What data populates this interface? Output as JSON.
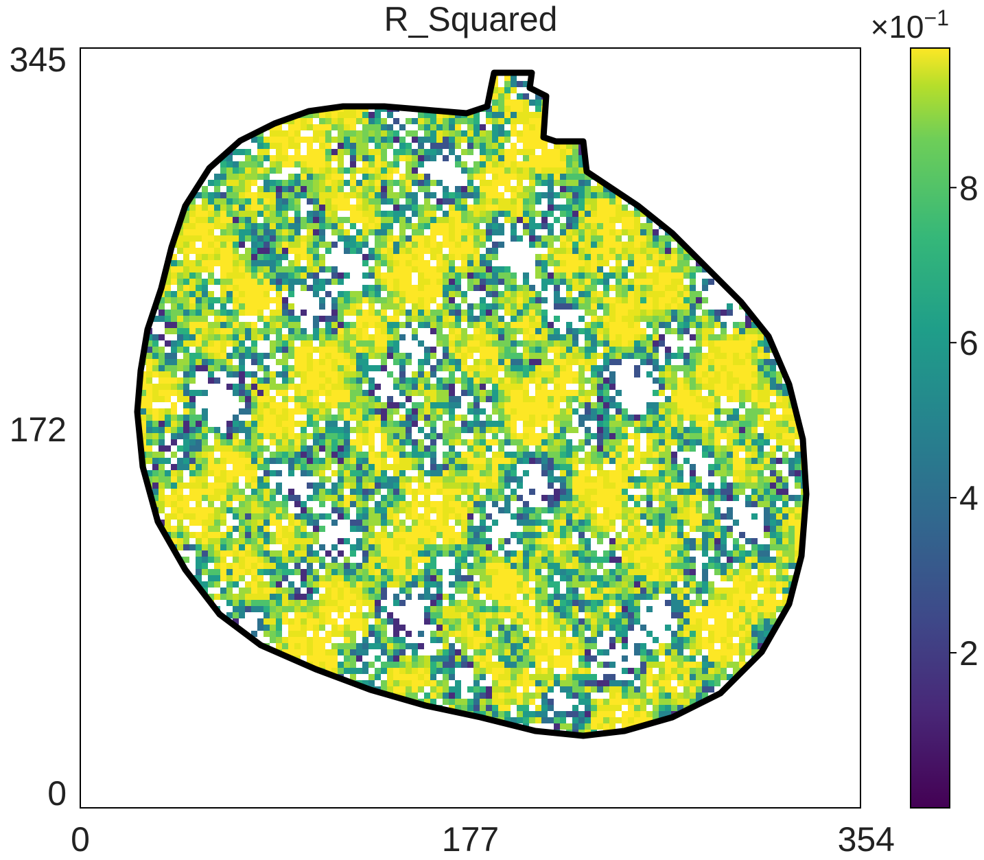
{
  "chart_data": {
    "type": "heatmap",
    "title": "R_Squared",
    "xlabel": "",
    "ylabel": "",
    "xlim": [
      0,
      354
    ],
    "ylim": [
      0,
      345
    ],
    "x_ticks": [
      "0",
      "177",
      "354"
    ],
    "y_ticks": [
      "0",
      "172",
      "345"
    ],
    "colorbar": {
      "colormap": "viridis",
      "range": [
        0,
        0.98
      ],
      "multiplier_label": "×10",
      "multiplier_exponent": "−1",
      "ticks": [
        "2",
        "4",
        "6",
        "8"
      ],
      "tick_values": [
        0.2,
        0.4,
        0.6,
        0.8
      ]
    },
    "mask_outline_color": "#000000",
    "grid": false,
    "summary": "Spatial map of R² values inside an irregular oval mask; values are mostly high (0.8–0.98, yellow/green) with scattered low-value (blue/purple) and missing (white) pixels."
  }
}
